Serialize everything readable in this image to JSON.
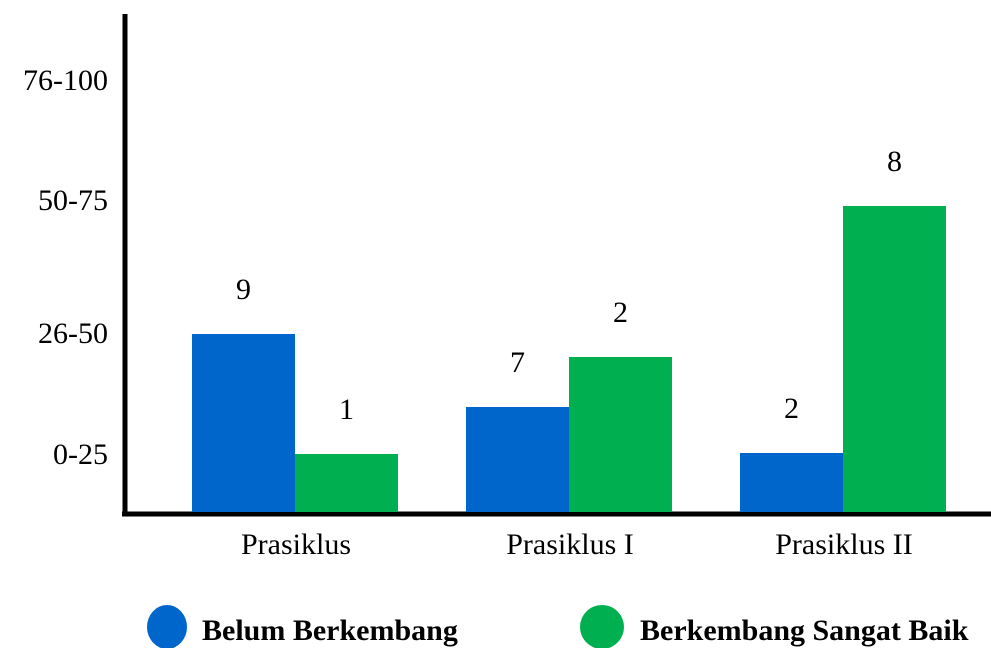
{
  "chart_data": {
    "type": "bar",
    "title": "",
    "xlabel": "",
    "ylabel": "",
    "categories": [
      "Prasiklus",
      "Prasiklus I",
      "Prasiklus II"
    ],
    "y_tick_labels": [
      "0-25",
      "26-50",
      "50-75",
      "76-100"
    ],
    "series": [
      {
        "name": "Belum Berkembang",
        "color": "#0066CC",
        "values": [
          9,
          7,
          2
        ]
      },
      {
        "name": "Berkembang Sangat Baik",
        "color": "#00AF50",
        "values": [
          1,
          2,
          8
        ]
      }
    ],
    "grid": false,
    "legend_position": "bottom"
  }
}
